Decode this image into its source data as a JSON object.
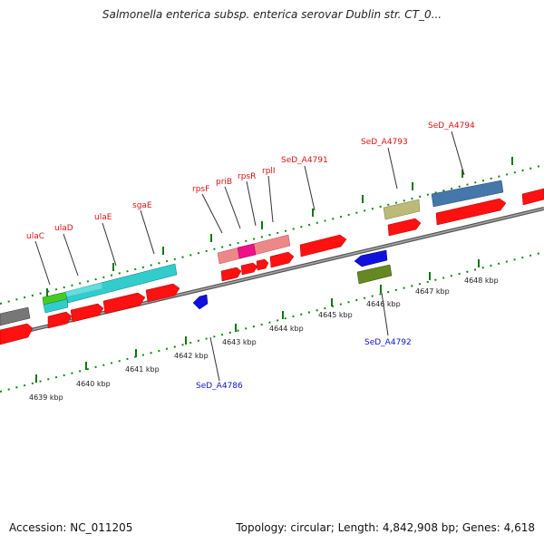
{
  "title": "Salmonella enterica subsp. enterica serovar Dublin str. CT_0...",
  "footer": {
    "accession": "Accession: NC_011205",
    "summary": "Topology: circular; Length: 4,842,908 bp; Genes: 4,618"
  },
  "colors": {
    "gene_red": "#ff1111",
    "label_red": "#dd1111",
    "label_blue": "#1111cc",
    "ruler_tick": "#117711",
    "backbone": "#888888"
  },
  "scale_labels": [
    "4639 kbp",
    "4640 kbp",
    "4641 kbp",
    "4642 kbp",
    "4643 kbp",
    "4644 kbp",
    "4645 kbp",
    "4646 kbp",
    "4647 kbp",
    "4648 kbp"
  ],
  "gene_labels_forward": [
    "ulaC",
    "ulaD",
    "ulaE",
    "sgaE",
    "rpsF",
    "priB",
    "rpsR",
    "rplI",
    "SeD_A4791",
    "SeD_A4793",
    "SeD_A4794"
  ],
  "gene_labels_reverse": [
    "SeD_A4786",
    "SeD_A4792"
  ]
}
